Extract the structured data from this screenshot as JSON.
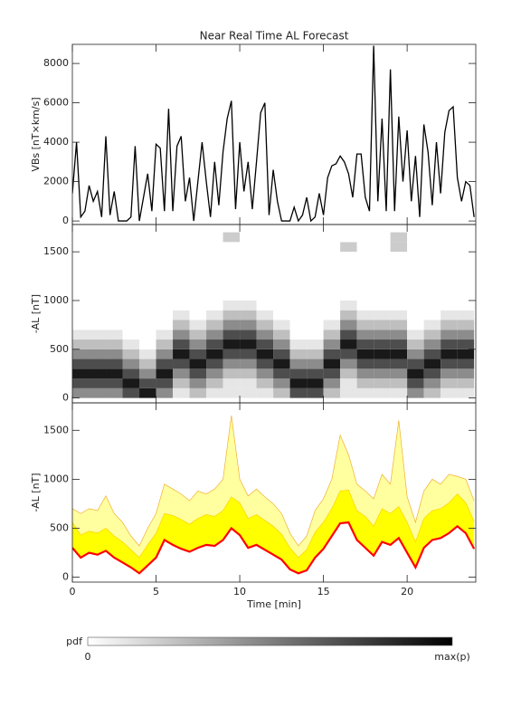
{
  "chart_data": [
    {
      "type": "line",
      "title": "Near Real Time AL Forecast",
      "ylabel": "VBs [nT×km/s]",
      "color": "#000000",
      "xlim": [
        0,
        24.1
      ],
      "xticks": [
        0,
        5,
        10,
        15,
        20
      ],
      "ylim": [
        -180,
        8970
      ],
      "yticks": [
        0,
        2000,
        4000,
        6000,
        8000
      ],
      "x": [
        0,
        0.25,
        0.5,
        0.75,
        1,
        1.25,
        1.5,
        1.75,
        2,
        2.25,
        2.5,
        2.75,
        3,
        3.25,
        3.5,
        3.75,
        4,
        4.25,
        4.5,
        4.75,
        5,
        5.25,
        5.5,
        5.75,
        6,
        6.25,
        6.5,
        6.75,
        7,
        7.25,
        7.5,
        7.75,
        8,
        8.25,
        8.5,
        8.75,
        9,
        9.25,
        9.5,
        9.75,
        10,
        10.25,
        10.5,
        10.75,
        11,
        11.25,
        11.5,
        11.75,
        12,
        12.25,
        12.5,
        12.75,
        13,
        13.25,
        13.5,
        13.75,
        14,
        14.25,
        14.5,
        14.75,
        15,
        15.25,
        15.5,
        15.75,
        16,
        16.25,
        16.5,
        16.75,
        17,
        17.25,
        17.5,
        17.75,
        18,
        18.25,
        18.5,
        18.75,
        19,
        19.25,
        19.5,
        19.75,
        20,
        20.25,
        20.5,
        20.75,
        21,
        21.25,
        21.5,
        21.75,
        22,
        22.25,
        22.5,
        22.75,
        23,
        23.25,
        23.5,
        23.75,
        24
      ],
      "values": [
        1400,
        4000,
        200,
        500,
        1800,
        1000,
        1500,
        200,
        4300,
        300,
        1500,
        0,
        0,
        0,
        200,
        3800,
        0,
        1200,
        2400,
        500,
        3900,
        3700,
        500,
        5700,
        500,
        3800,
        4300,
        1000,
        2200,
        0,
        2000,
        4000,
        2000,
        200,
        3000,
        800,
        3500,
        5200,
        6100,
        600,
        4000,
        1500,
        3000,
        600,
        3000,
        5500,
        6000,
        300,
        2600,
        1000,
        0,
        0,
        0,
        700,
        0,
        300,
        1200,
        0,
        200,
        1400,
        300,
        2200,
        2800,
        2900,
        3300,
        3000,
        2400,
        1200,
        3400,
        3400,
        1200,
        500,
        8900,
        1000,
        5200,
        500,
        7700,
        500,
        5300,
        2000,
        4600,
        1000,
        3300,
        200,
        4900,
        3500,
        800,
        4000,
        1400,
        4500,
        5600,
        5800,
        2200,
        1000,
        2000,
        1800,
        200
      ]
    },
    {
      "type": "heatmap",
      "ylabel": "-AL [nT]",
      "colorbar_label": "pdf",
      "colorbar_ticks": [
        "0",
        "max(p)"
      ],
      "xlim": [
        0,
        24.1
      ],
      "xticks": [
        0,
        5,
        10,
        15,
        20
      ],
      "ylim": [
        -50,
        1780
      ],
      "yticks": [
        0,
        500,
        1000,
        1500
      ],
      "xbins": [
        0,
        1,
        2,
        3,
        4,
        5,
        6,
        7,
        8,
        9,
        10,
        11,
        12,
        13,
        14,
        15,
        16,
        17,
        18,
        19,
        20,
        21,
        22,
        23,
        24
      ],
      "ybins": [
        0,
        100,
        200,
        300,
        400,
        500,
        600,
        700,
        800,
        900,
        1000,
        1100,
        1200,
        1300,
        1400,
        1500,
        1600,
        1700
      ],
      "z": [
        [
          0.45,
          0.7,
          0.9,
          0.7,
          0.45,
          0.25,
          0.1,
          0,
          0,
          0,
          0,
          0,
          0,
          0,
          0,
          0,
          0
        ],
        [
          0.45,
          0.7,
          0.9,
          0.7,
          0.45,
          0.25,
          0.1,
          0,
          0,
          0,
          0,
          0,
          0,
          0,
          0,
          0,
          0
        ],
        [
          0.45,
          0.7,
          0.9,
          0.7,
          0.45,
          0.25,
          0.1,
          0,
          0,
          0,
          0,
          0,
          0,
          0,
          0,
          0,
          0
        ],
        [
          0.7,
          0.9,
          0.7,
          0.45,
          0.25,
          0.1,
          0,
          0,
          0,
          0,
          0,
          0,
          0,
          0,
          0,
          0,
          0
        ],
        [
          0.9,
          0.7,
          0.45,
          0.25,
          0.1,
          0,
          0,
          0,
          0,
          0,
          0,
          0,
          0,
          0,
          0,
          0,
          0
        ],
        [
          0.45,
          0.7,
          0.9,
          0.7,
          0.45,
          0.25,
          0.1,
          0,
          0,
          0,
          0,
          0,
          0,
          0,
          0,
          0,
          0
        ],
        [
          0.1,
          0.25,
          0.45,
          0.7,
          0.9,
          0.7,
          0.45,
          0.25,
          0.1,
          0,
          0,
          0,
          0,
          0,
          0,
          0,
          0
        ],
        [
          0.25,
          0.45,
          0.7,
          0.9,
          0.7,
          0.45,
          0.25,
          0.1,
          0,
          0,
          0,
          0,
          0,
          0,
          0,
          0,
          0
        ],
        [
          0.1,
          0.25,
          0.45,
          0.7,
          0.9,
          0.7,
          0.45,
          0.25,
          0.1,
          0,
          0,
          0,
          0,
          0,
          0,
          0,
          0
        ],
        [
          0.1,
          0.1,
          0.25,
          0.45,
          0.7,
          0.9,
          0.7,
          0.45,
          0.25,
          0.1,
          0,
          0,
          0,
          0,
          0,
          0,
          0.2
        ],
        [
          0.1,
          0.1,
          0.25,
          0.45,
          0.7,
          0.9,
          0.7,
          0.45,
          0.25,
          0.1,
          0,
          0,
          0,
          0,
          0,
          0,
          0
        ],
        [
          0.1,
          0.25,
          0.45,
          0.7,
          0.9,
          0.7,
          0.45,
          0.25,
          0.1,
          0,
          0,
          0,
          0,
          0,
          0,
          0,
          0
        ],
        [
          0.25,
          0.45,
          0.7,
          0.9,
          0.7,
          0.45,
          0.25,
          0.1,
          0,
          0,
          0,
          0,
          0,
          0,
          0,
          0,
          0
        ],
        [
          0.7,
          0.9,
          0.7,
          0.45,
          0.25,
          0.1,
          0,
          0,
          0,
          0,
          0,
          0,
          0,
          0,
          0,
          0,
          0
        ],
        [
          0.7,
          0.9,
          0.7,
          0.45,
          0.25,
          0.1,
          0,
          0,
          0,
          0,
          0,
          0,
          0,
          0,
          0,
          0,
          0
        ],
        [
          0.25,
          0.45,
          0.7,
          0.9,
          0.7,
          0.45,
          0.25,
          0.1,
          0,
          0,
          0,
          0,
          0,
          0,
          0,
          0,
          0
        ],
        [
          0.1,
          0.1,
          0.25,
          0.45,
          0.7,
          0.9,
          0.7,
          0.45,
          0.25,
          0.1,
          0,
          0,
          0,
          0,
          0,
          0.2,
          0
        ],
        [
          0.1,
          0.25,
          0.45,
          0.7,
          0.9,
          0.7,
          0.45,
          0.25,
          0.1,
          0,
          0,
          0,
          0,
          0,
          0,
          0,
          0
        ],
        [
          0.1,
          0.25,
          0.45,
          0.7,
          0.9,
          0.7,
          0.45,
          0.25,
          0.1,
          0,
          0,
          0,
          0,
          0,
          0,
          0,
          0
        ],
        [
          0.1,
          0.25,
          0.45,
          0.7,
          0.9,
          0.7,
          0.45,
          0.25,
          0.1,
          0,
          0,
          0,
          0,
          0,
          0,
          0.2,
          0.2
        ],
        [
          0.45,
          0.7,
          0.9,
          0.7,
          0.45,
          0.25,
          0.1,
          0,
          0,
          0,
          0,
          0,
          0,
          0,
          0,
          0,
          0
        ],
        [
          0.25,
          0.45,
          0.7,
          0.9,
          0.7,
          0.45,
          0.25,
          0.1,
          0,
          0,
          0,
          0,
          0,
          0,
          0,
          0,
          0
        ],
        [
          0.1,
          0.25,
          0.45,
          0.7,
          0.9,
          0.7,
          0.45,
          0.25,
          0.1,
          0,
          0,
          0,
          0,
          0,
          0,
          0,
          0
        ],
        [
          0.1,
          0.25,
          0.45,
          0.7,
          0.9,
          0.7,
          0.45,
          0.25,
          0.1,
          0,
          0,
          0,
          0,
          0,
          0,
          0,
          0
        ]
      ]
    },
    {
      "type": "band",
      "ylabel": "-AL [nT]",
      "xlabel": "Time [min]",
      "xlim": [
        0,
        24.1
      ],
      "xticks": [
        0,
        5,
        10,
        15,
        20
      ],
      "ylim": [
        -50,
        1780
      ],
      "yticks": [
        0,
        500,
        1000,
        1500
      ],
      "x": [
        0,
        0.5,
        1,
        1.5,
        2,
        2.5,
        3,
        3.5,
        4,
        4.5,
        5,
        5.5,
        6,
        6.5,
        7,
        7.5,
        8,
        8.5,
        9,
        9.5,
        10,
        10.5,
        11,
        11.5,
        12,
        12.5,
        13,
        13.5,
        14,
        14.5,
        15,
        15.5,
        16,
        16.5,
        17,
        17.5,
        18,
        18.5,
        19,
        19.5,
        20,
        20.5,
        21,
        21.5,
        22,
        22.5,
        23,
        23.5,
        24
      ],
      "series": [
        {
          "color": "#ffffa0",
          "line_color": "#f0b030",
          "values": [
            700,
            650,
            700,
            680,
            830,
            650,
            560,
            420,
            320,
            500,
            650,
            950,
            900,
            850,
            780,
            880,
            850,
            900,
            1000,
            1650,
            1000,
            830,
            900,
            820,
            750,
            650,
            450,
            320,
            420,
            680,
            800,
            1000,
            1450,
            1250,
            950,
            880,
            800,
            1050,
            950,
            1600,
            820,
            560,
            880,
            1000,
            950,
            1050,
            1030,
            1000,
            780
          ]
        },
        {
          "color": "#ffff00",
          "line_color": "#ffd000",
          "values": [
            560,
            430,
            470,
            450,
            500,
            420,
            360,
            280,
            200,
            330,
            450,
            650,
            630,
            590,
            540,
            600,
            640,
            620,
            680,
            820,
            760,
            600,
            640,
            580,
            520,
            440,
            300,
            200,
            280,
            460,
            560,
            700,
            880,
            890,
            680,
            620,
            520,
            700,
            650,
            720,
            560,
            360,
            600,
            680,
            700,
            760,
            850,
            760,
            570
          ]
        },
        {
          "color": "#ff0000",
          "values": [
            300,
            200,
            250,
            230,
            270,
            200,
            150,
            100,
            40,
            120,
            200,
            380,
            330,
            290,
            260,
            300,
            330,
            320,
            380,
            500,
            430,
            300,
            330,
            280,
            230,
            180,
            80,
            40,
            70,
            200,
            290,
            420,
            550,
            560,
            380,
            300,
            220,
            360,
            330,
            400,
            250,
            100,
            300,
            380,
            400,
            450,
            520,
            450,
            290
          ]
        }
      ]
    }
  ]
}
